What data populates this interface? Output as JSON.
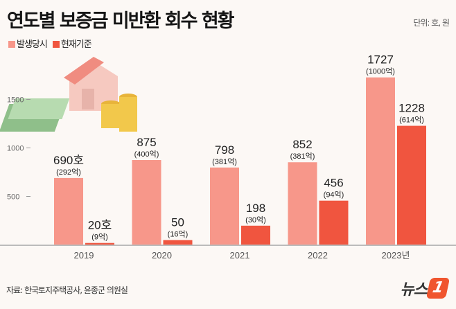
{
  "title": "연도별 보증금 미반환 회수 현황",
  "unit": "단위: 호, 원",
  "source": "자료: 한국토지주택공사, 윤종군 의원실",
  "logo": {
    "text": "뉴스",
    "mark": "1"
  },
  "colors": {
    "background": "#fcf8f5",
    "occurrence": "#f7978a",
    "current": "#f0553f"
  },
  "chart_data": {
    "type": "bar",
    "categories": [
      "2019",
      "2020",
      "2021",
      "2022",
      "2023년"
    ],
    "series": [
      {
        "name": "발생당시",
        "values": [
          690,
          875,
          798,
          852,
          1727
        ],
        "labels": [
          "690호",
          "875",
          "798",
          "852",
          "1727"
        ],
        "sublabels": [
          "(292억)",
          "(400억)",
          "(381억)",
          "(381억)",
          "(1000억)"
        ]
      },
      {
        "name": "현재기준",
        "values": [
          20,
          50,
          198,
          456,
          1228
        ],
        "labels": [
          "20호",
          "50",
          "198",
          "456",
          "1228"
        ],
        "sublabels": [
          "(9억)",
          "(16억)",
          "(30억)",
          "(94억)",
          "(614억)"
        ]
      }
    ],
    "yticks": [
      500,
      1000,
      1500
    ],
    "ylim": [
      0,
      1800
    ],
    "grid": false,
    "legend": "top-left"
  }
}
